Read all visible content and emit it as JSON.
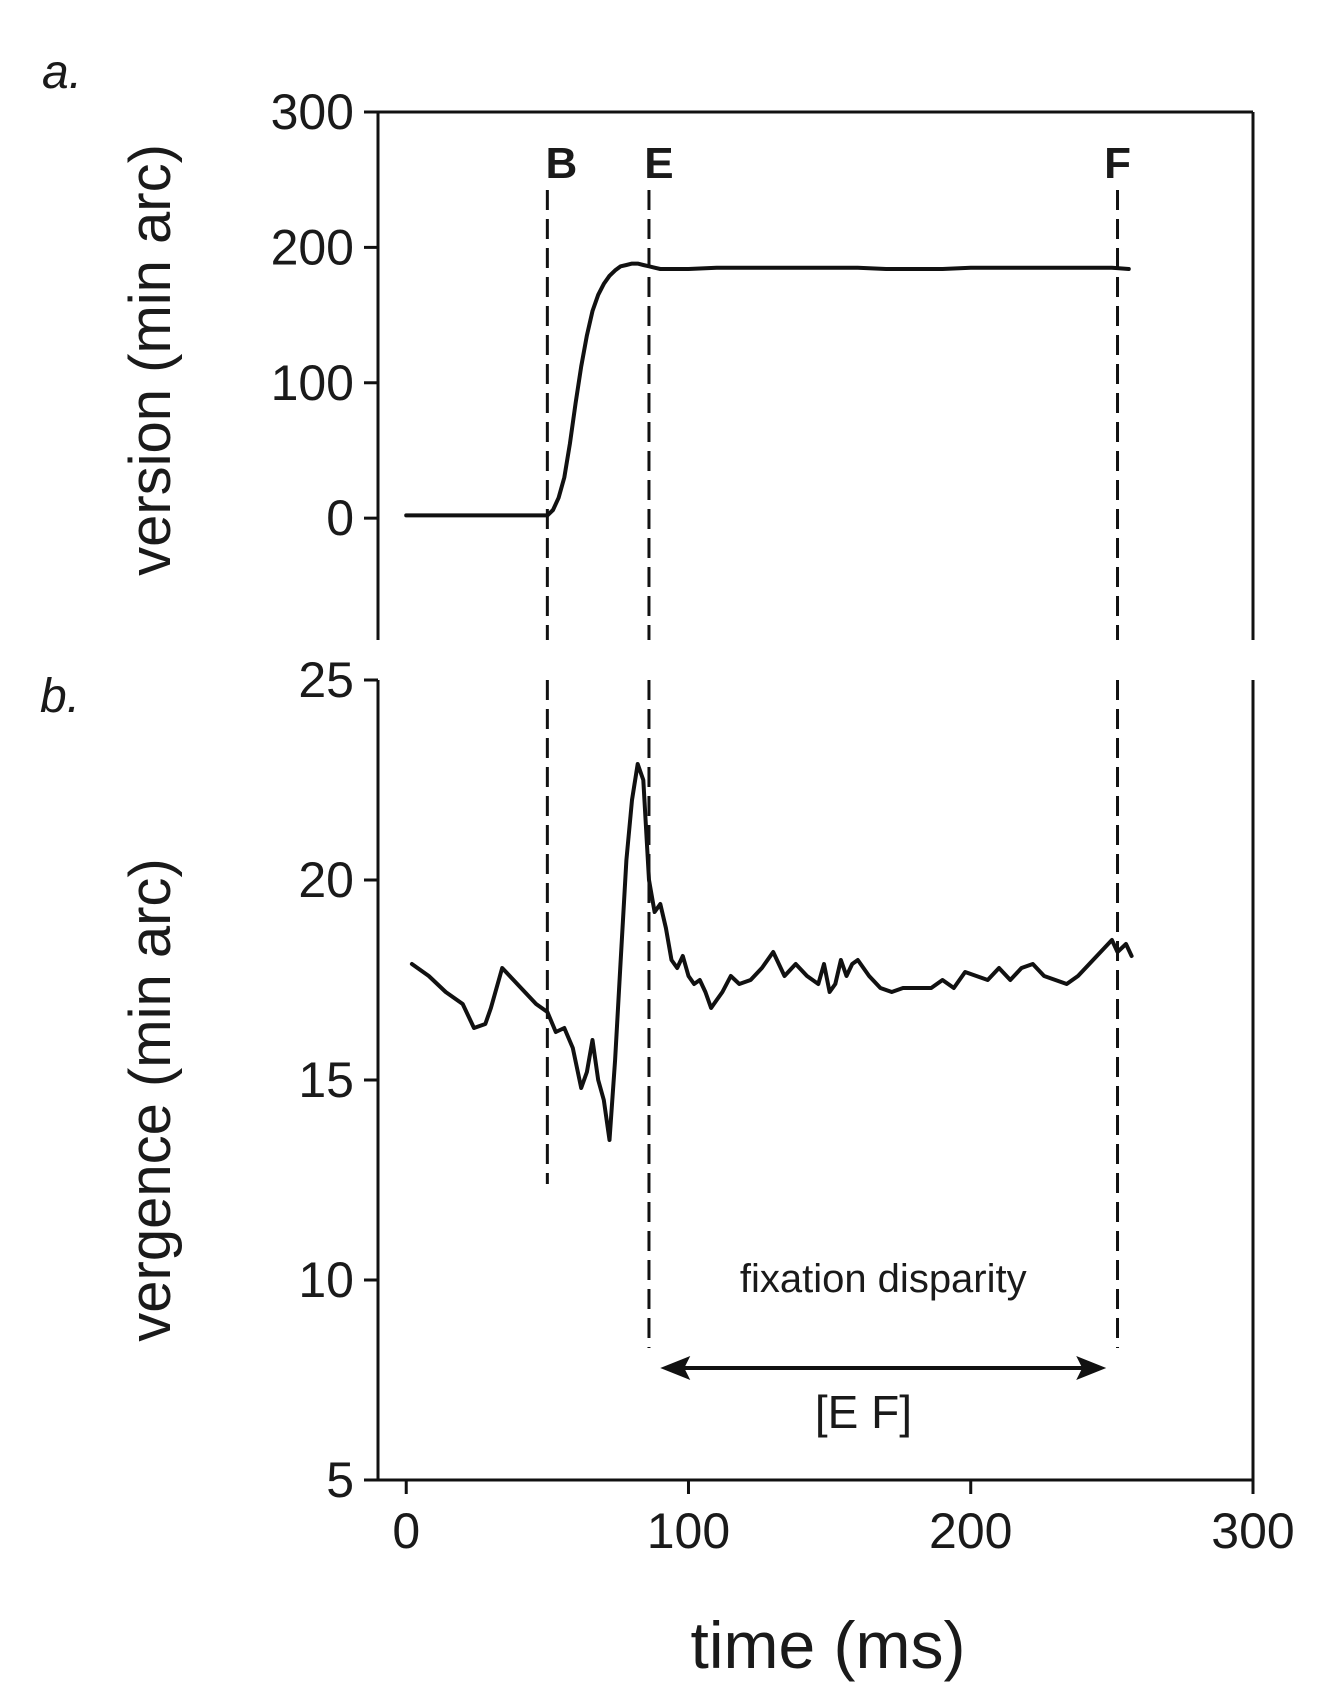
{
  "chart_data": [
    {
      "panel_label": "a.",
      "type": "line",
      "ylabel": "version (min arc)",
      "xlabel": "",
      "ylim": [
        -90,
        300
      ],
      "yticks": [
        0,
        100,
        200,
        300
      ],
      "xlim": [
        -10,
        300
      ],
      "series": [
        {
          "x": [
            0,
            5,
            10,
            15,
            20,
            25,
            30,
            35,
            40,
            45,
            50,
            52,
            54,
            56,
            58,
            60,
            62,
            64,
            66,
            68,
            70,
            72,
            74,
            76,
            78,
            80,
            82,
            84,
            86,
            88,
            90,
            95,
            100,
            110,
            120,
            130,
            140,
            150,
            160,
            170,
            180,
            190,
            200,
            210,
            220,
            230,
            240,
            250,
            256
          ],
          "y": [
            2,
            2,
            2,
            2,
            2,
            2,
            2,
            2,
            2,
            2,
            2,
            6,
            15,
            30,
            55,
            85,
            112,
            135,
            153,
            165,
            173,
            179,
            183,
            186,
            187,
            188,
            188,
            187,
            186,
            185,
            184,
            184,
            184,
            185,
            185,
            185,
            185,
            185,
            185,
            184,
            184,
            184,
            185,
            185,
            185,
            185,
            185,
            185,
            184
          ]
        }
      ],
      "markers": [
        {
          "label": "B",
          "x": 50
        },
        {
          "label": "E",
          "x": 86
        },
        {
          "label": "F",
          "x": 252
        }
      ],
      "grid": false
    },
    {
      "panel_label": "b.",
      "type": "line",
      "ylabel": "vergence (min arc)",
      "xlabel": "time (ms)",
      "ylim": [
        5,
        25
      ],
      "yticks": [
        5,
        10,
        15,
        20,
        25
      ],
      "xlim": [
        -10,
        300
      ],
      "xticks": [
        0,
        100,
        200,
        300
      ],
      "series": [
        {
          "x": [
            2,
            8,
            14,
            20,
            24,
            28,
            30,
            34,
            38,
            42,
            46,
            50,
            53,
            56,
            59,
            62,
            64,
            66,
            68,
            70,
            72,
            74,
            76,
            78,
            80,
            82,
            84,
            86,
            88,
            90,
            92,
            94,
            96,
            98,
            100,
            102,
            104,
            106,
            108,
            110,
            112,
            115,
            118,
            122,
            126,
            130,
            134,
            138,
            142,
            146,
            148,
            150,
            152,
            154,
            156,
            158,
            160,
            164,
            168,
            172,
            176,
            180,
            186,
            190,
            194,
            198,
            202,
            206,
            210,
            214,
            218,
            222,
            226,
            230,
            234,
            238,
            242,
            246,
            250,
            252,
            255,
            257
          ],
          "y": [
            17.9,
            17.6,
            17.2,
            16.9,
            16.3,
            16.4,
            16.8,
            17.8,
            17.5,
            17.2,
            16.9,
            16.7,
            16.2,
            16.3,
            15.8,
            14.8,
            15.2,
            16.0,
            15.0,
            14.5,
            13.5,
            15.5,
            18.0,
            20.5,
            22.0,
            22.9,
            22.5,
            20.0,
            19.2,
            19.4,
            18.8,
            18.0,
            17.8,
            18.1,
            17.6,
            17.4,
            17.5,
            17.2,
            16.8,
            17.0,
            17.2,
            17.6,
            17.4,
            17.5,
            17.8,
            18.2,
            17.6,
            17.9,
            17.6,
            17.4,
            17.9,
            17.2,
            17.4,
            18.0,
            17.6,
            17.9,
            18.0,
            17.6,
            17.3,
            17.2,
            17.3,
            17.3,
            17.3,
            17.5,
            17.3,
            17.7,
            17.6,
            17.5,
            17.8,
            17.5,
            17.8,
            17.9,
            17.6,
            17.5,
            17.4,
            17.6,
            17.9,
            18.2,
            18.5,
            18.2,
            18.4,
            18.1
          ]
        }
      ],
      "markers": [
        {
          "label": "",
          "x": 50,
          "y_bottom": 12.4
        },
        {
          "label": "",
          "x": 86,
          "y_bottom": 8.3
        },
        {
          "label": "",
          "x": 252,
          "y_bottom": 8.3
        }
      ],
      "annotations": [
        {
          "text": "fixation disparity",
          "x": 169,
          "y": 9.7
        },
        {
          "text": "[E F]",
          "x": 162,
          "y": 6.3
        }
      ],
      "arrow": {
        "x_start": 90,
        "x_end": 248,
        "y": 7.8
      },
      "grid": false
    }
  ]
}
